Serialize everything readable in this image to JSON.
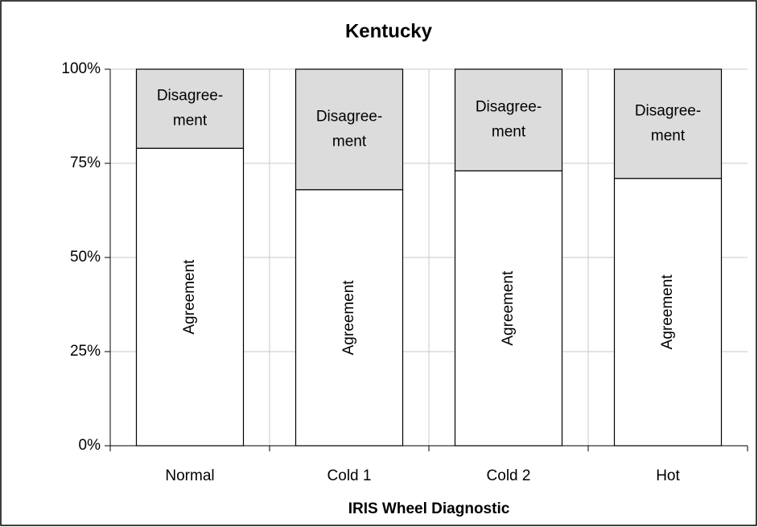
{
  "chart_data": {
    "type": "stacked_bar",
    "title": "Kentucky",
    "x_label": "IRIS Wheel Diagnostic",
    "categories": [
      "Normal",
      "Cold 1",
      "Cold 2",
      "Hot"
    ],
    "series": [
      {
        "name": "Agreement",
        "color": "#ffffff",
        "values": [
          79,
          68,
          73,
          71
        ]
      },
      {
        "name": "Disagree- ment",
        "color": "#dcdcdc",
        "values": [
          21,
          32,
          27,
          29
        ]
      }
    ],
    "ylim": [
      0,
      100
    ],
    "yticks": [
      {
        "value": 0,
        "label": "0%"
      },
      {
        "value": 25,
        "label": "25%"
      },
      {
        "value": 50,
        "label": "50%"
      },
      {
        "value": 75,
        "label": "75%"
      },
      {
        "value": 100,
        "label": "100%"
      }
    ],
    "grid": true
  }
}
